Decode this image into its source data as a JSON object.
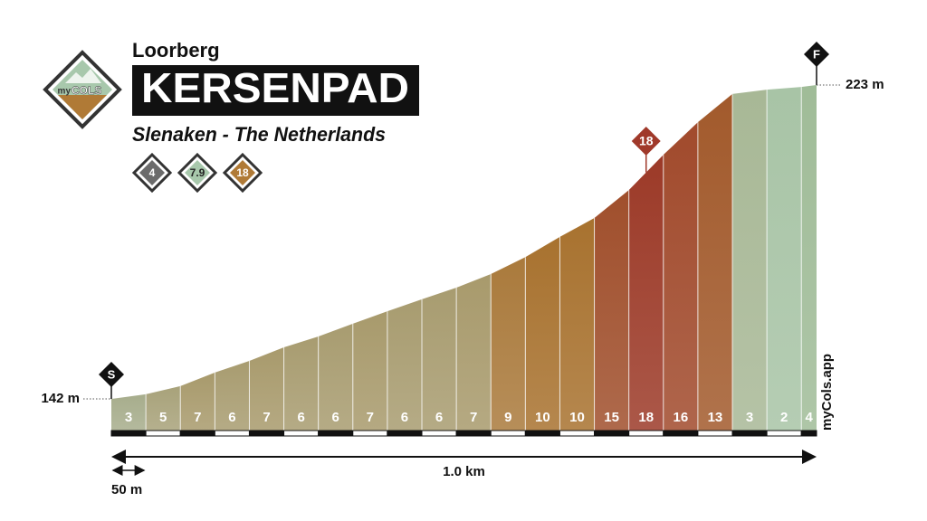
{
  "region": "Loorberg",
  "name": "KERSENPAD",
  "location": "Slenaken - The Netherlands",
  "logo": {
    "prefix": "my",
    "name": "COLS"
  },
  "stats": [
    {
      "value": 4,
      "color": "#6b6b6b",
      "text_color": "#ffffff"
    },
    {
      "value": 7.9,
      "color": "#a8c8ac",
      "text_color": "#222222"
    },
    {
      "value": 18,
      "color": "#b07a36",
      "text_color": "#ffffff"
    }
  ],
  "chart_data": {
    "type": "elevation-profile",
    "distance": [
      0,
      50,
      100,
      150,
      200,
      250,
      300,
      350,
      400,
      450,
      500,
      550,
      600,
      650,
      700,
      750,
      800,
      850,
      900,
      950,
      1000,
      1022
    ],
    "elevation": [
      142,
      143.2,
      145.3,
      148.8,
      151.8,
      155.3,
      158.1,
      161.4,
      164.6,
      167.7,
      170.7,
      174.2,
      178.6,
      183.8,
      188.7,
      195.9,
      205,
      213.4,
      220.7,
      221.8,
      222.5,
      223
    ],
    "gradients": [
      3,
      5,
      7,
      6,
      7,
      6,
      6,
      7,
      6,
      6,
      7,
      9,
      10,
      10,
      15,
      18,
      16,
      13,
      3,
      2,
      4
    ],
    "colors": [
      "#a7ad8c",
      "#a8a27a",
      "#a89a6c",
      "#a89c70",
      "#a89a6c",
      "#a89c70",
      "#a89c70",
      "#a89a6c",
      "#a89c70",
      "#a89c70",
      "#a89a6c",
      "#aa7a3c",
      "#a8722f",
      "#a8722f",
      "#a04f2c",
      "#9c3a28",
      "#a14a2c",
      "#a25a2c",
      "#a8b896",
      "#a8c4a6",
      "#a0bc98"
    ],
    "start_marker": "S",
    "finish_marker": "F",
    "elevation_labels": [
      {
        "value": 142,
        "label": "142 m"
      },
      {
        "value": 223,
        "label": "223 m"
      }
    ],
    "total_distance": "1.0 km",
    "scale_label": "50 m",
    "credit": "myCols.app"
  }
}
